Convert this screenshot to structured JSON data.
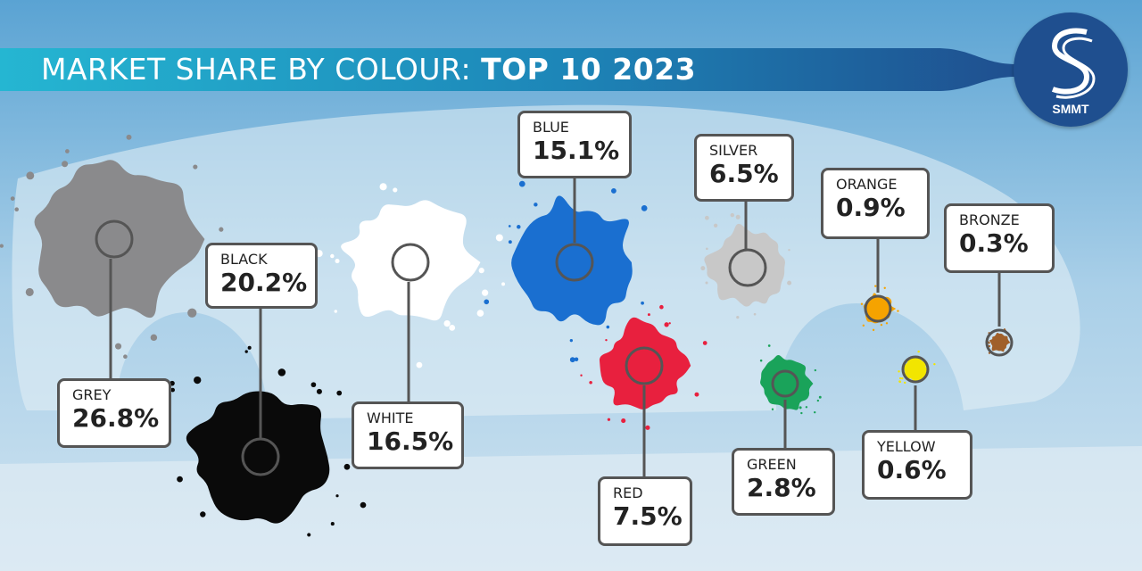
{
  "title": {
    "light": "MARKET SHARE BY COLOUR: ",
    "bold": "TOP 10 2023"
  },
  "logo": {
    "text": "SMMT",
    "color": "#1f4f8f"
  },
  "chart_data": {
    "type": "pie",
    "unit": "%",
    "categories": [
      "GREY",
      "BLACK",
      "WHITE",
      "BLUE",
      "RED",
      "SILVER",
      "GREEN",
      "ORANGE",
      "YELLOW",
      "BRONZE"
    ],
    "values": [
      26.8,
      20.2,
      16.5,
      15.1,
      7.5,
      6.5,
      2.8,
      0.9,
      0.6,
      0.3
    ],
    "value_labels": [
      "26.8%",
      "20.2%",
      "16.5%",
      "15.1%",
      "7.5%",
      "6.5%",
      "2.8%",
      "0.9%",
      "0.6%",
      "0.3%"
    ],
    "colors": [
      "#8a8a8c",
      "#0a0a0a",
      "#ffffff",
      "#1a6fd0",
      "#e8203e",
      "#c8c8c8",
      "#1aa35a",
      "#f5a300",
      "#f2e500",
      "#a0602a"
    ]
  }
}
